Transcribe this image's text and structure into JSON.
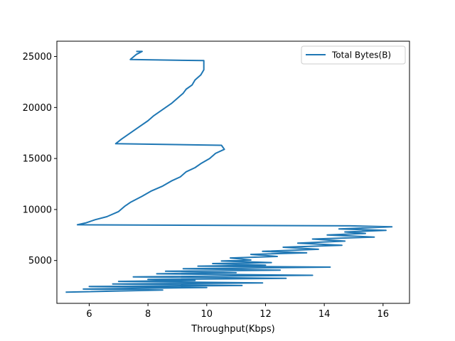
{
  "chart_data": {
    "type": "line",
    "title": "",
    "xlabel": "Throughput(Kbps)",
    "ylabel": "",
    "xlim": [
      4.9,
      16.9
    ],
    "ylim": [
      800,
      26500
    ],
    "xticks": [
      {
        "value": 6,
        "label": "6"
      },
      {
        "value": 8,
        "label": "8"
      },
      {
        "value": 10,
        "label": "10"
      },
      {
        "value": 12,
        "label": "12"
      },
      {
        "value": 14,
        "label": "14"
      },
      {
        "value": 16,
        "label": "16"
      }
    ],
    "yticks": [
      {
        "value": 5000,
        "label": "5000"
      },
      {
        "value": 10000,
        "label": "10000"
      },
      {
        "value": 15000,
        "label": "15000"
      },
      {
        "value": 20000,
        "label": "20000"
      },
      {
        "value": 25000,
        "label": "25000"
      }
    ],
    "grid": false,
    "legend_position": "upper-right",
    "series": [
      {
        "name": "Total Bytes(B)",
        "color": "#1f77b4",
        "points": [
          [
            5.2,
            1900
          ],
          [
            8.5,
            2100
          ],
          [
            5.8,
            2200
          ],
          [
            10.0,
            2350
          ],
          [
            6.0,
            2450
          ],
          [
            11.2,
            2550
          ],
          [
            6.8,
            2700
          ],
          [
            11.9,
            2800
          ],
          [
            7.0,
            2950
          ],
          [
            9.6,
            3050
          ],
          [
            8.0,
            3150
          ],
          [
            12.7,
            3250
          ],
          [
            7.5,
            3400
          ],
          [
            13.6,
            3550
          ],
          [
            8.3,
            3700
          ],
          [
            11.0,
            3800
          ],
          [
            8.6,
            3950
          ],
          [
            12.5,
            4050
          ],
          [
            9.2,
            4200
          ],
          [
            14.2,
            4350
          ],
          [
            9.7,
            4450
          ],
          [
            12.0,
            4550
          ],
          [
            10.2,
            4700
          ],
          [
            12.2,
            4800
          ],
          [
            10.5,
            4950
          ],
          [
            11.5,
            5050
          ],
          [
            10.8,
            5250
          ],
          [
            12.4,
            5400
          ],
          [
            11.5,
            5600
          ],
          [
            13.4,
            5750
          ],
          [
            11.9,
            5900
          ],
          [
            13.8,
            6100
          ],
          [
            12.6,
            6300
          ],
          [
            14.6,
            6500
          ],
          [
            13.1,
            6700
          ],
          [
            14.7,
            6900
          ],
          [
            13.6,
            7100
          ],
          [
            15.7,
            7300
          ],
          [
            14.1,
            7500
          ],
          [
            15.4,
            7650
          ],
          [
            14.7,
            7800
          ],
          [
            16.1,
            7950
          ],
          [
            14.5,
            8100
          ],
          [
            16.3,
            8300
          ],
          [
            14.9,
            8400
          ],
          [
            5.6,
            8500
          ],
          [
            5.9,
            8700
          ],
          [
            6.2,
            9000
          ],
          [
            6.6,
            9300
          ],
          [
            7.0,
            9800
          ],
          [
            7.2,
            10300
          ],
          [
            7.4,
            10700
          ],
          [
            7.8,
            11300
          ],
          [
            8.1,
            11800
          ],
          [
            8.5,
            12300
          ],
          [
            8.8,
            12800
          ],
          [
            9.1,
            13200
          ],
          [
            9.3,
            13700
          ],
          [
            9.6,
            14100
          ],
          [
            9.8,
            14500
          ],
          [
            10.1,
            15000
          ],
          [
            10.3,
            15500
          ],
          [
            10.6,
            15900
          ],
          [
            10.5,
            16300
          ],
          [
            6.9,
            16450
          ],
          [
            7.1,
            16900
          ],
          [
            7.4,
            17500
          ],
          [
            7.7,
            18100
          ],
          [
            8.0,
            18700
          ],
          [
            8.2,
            19200
          ],
          [
            8.5,
            19800
          ],
          [
            8.8,
            20400
          ],
          [
            9.0,
            20900
          ],
          [
            9.2,
            21400
          ],
          [
            9.3,
            21800
          ],
          [
            9.5,
            22200
          ],
          [
            9.6,
            22700
          ],
          [
            9.8,
            23200
          ],
          [
            9.9,
            23700
          ],
          [
            9.9,
            24100
          ],
          [
            9.9,
            24600
          ],
          [
            7.4,
            24700
          ],
          [
            7.6,
            25200
          ],
          [
            7.8,
            25500
          ],
          [
            7.6,
            25500
          ]
        ]
      }
    ]
  }
}
